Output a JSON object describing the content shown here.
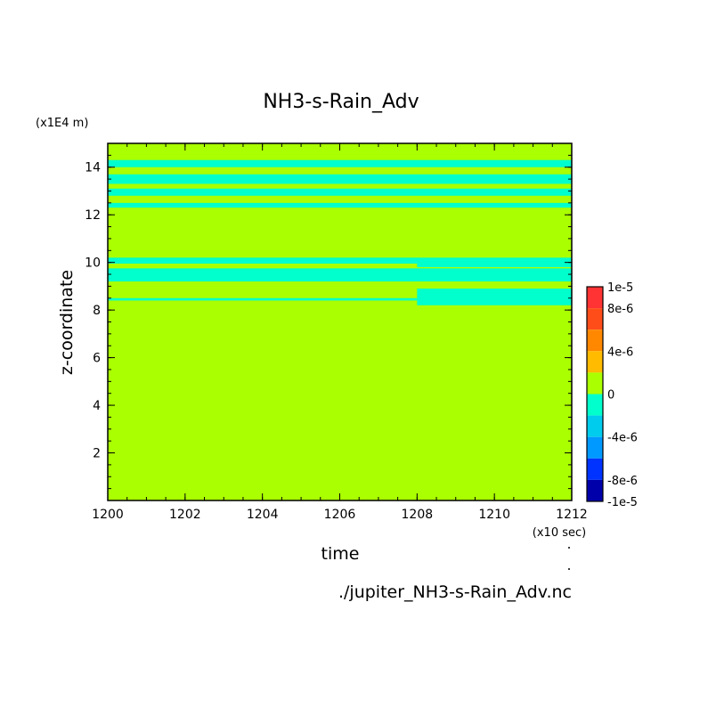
{
  "chart_data": {
    "type": "heatmap",
    "title": "NH3-s-Rain_Adv",
    "xlabel": "time",
    "ylabel": "z-coordinate",
    "x_unit": "(x10 sec)",
    "y_unit": "(x1E4 m)",
    "xlim": [
      1200,
      1212
    ],
    "ylim": [
      0,
      15
    ],
    "x_ticks": [
      "1200",
      "1202",
      "1204",
      "1206",
      "1208",
      "1210",
      "1212"
    ],
    "x_tick_values": [
      1200,
      1202,
      1204,
      1206,
      1208,
      1210,
      1212
    ],
    "y_ticks": [
      "2",
      "4",
      "6",
      "8",
      "10",
      "12",
      "14"
    ],
    "y_tick_values": [
      2,
      4,
      6,
      8,
      10,
      12,
      14
    ],
    "background_value_color": "#aaff00",
    "bands": [
      {
        "y": [
          14.0,
          14.3
        ],
        "x": [
          1200,
          1212
        ],
        "color": "#00ffcc"
      },
      {
        "y": [
          13.3,
          13.7
        ],
        "x": [
          1200,
          1212
        ],
        "color": "#00ffcc"
      },
      {
        "y": [
          12.8,
          13.1
        ],
        "x": [
          1200,
          1212
        ],
        "color": "#00ffcc"
      },
      {
        "y": [
          12.3,
          12.5
        ],
        "x": [
          1200,
          1212
        ],
        "color": "#00ffcc"
      },
      {
        "y": [
          9.95,
          10.2
        ],
        "x": [
          1200,
          1212
        ],
        "color": "#00ffcc"
      },
      {
        "y": [
          9.8,
          9.95
        ],
        "x": [
          1208,
          1212
        ],
        "color": "#00ffcc"
      },
      {
        "y": [
          9.2,
          9.75
        ],
        "x": [
          1200,
          1212
        ],
        "color": "#00ffcc"
      },
      {
        "y": [
          8.2,
          8.9
        ],
        "x": [
          1208,
          1212
        ],
        "color": "#00ffcc"
      },
      {
        "y": [
          8.4,
          8.5
        ],
        "x": [
          1200,
          1208
        ],
        "color": "#00ffcc"
      }
    ],
    "colorbar": {
      "labels": [
        "1e-5",
        "8e-6",
        "4e-6",
        "0",
        "-4e-6",
        "-8e-6",
        "-1e-5"
      ],
      "label_values": [
        1e-05,
        8e-06,
        4e-06,
        0,
        -4e-06,
        -8e-06,
        -1e-05
      ],
      "levels": [
        {
          "range": [
            8e-06,
            1e-05
          ],
          "color": "#ff3333"
        },
        {
          "range": [
            6e-06,
            8e-06
          ],
          "color": "#ff4d1a"
        },
        {
          "range": [
            4e-06,
            6e-06
          ],
          "color": "#ff8800"
        },
        {
          "range": [
            2e-06,
            4e-06
          ],
          "color": "#ffbb00"
        },
        {
          "range": [
            0,
            2e-06
          ],
          "color": "#aaff00"
        },
        {
          "range": [
            -2e-06,
            0
          ],
          "color": "#00ffcc"
        },
        {
          "range": [
            -4e-06,
            -2e-06
          ],
          "color": "#00ccee"
        },
        {
          "range": [
            -6e-06,
            -4e-06
          ],
          "color": "#0099ff"
        },
        {
          "range": [
            -8e-06,
            -6e-06
          ],
          "color": "#0033ff"
        },
        {
          "range": [
            -1e-05,
            -8e-06
          ],
          "color": "#0000aa"
        }
      ]
    },
    "file_label": "./jupiter_NH3-s-Rain_Adv.nc"
  }
}
